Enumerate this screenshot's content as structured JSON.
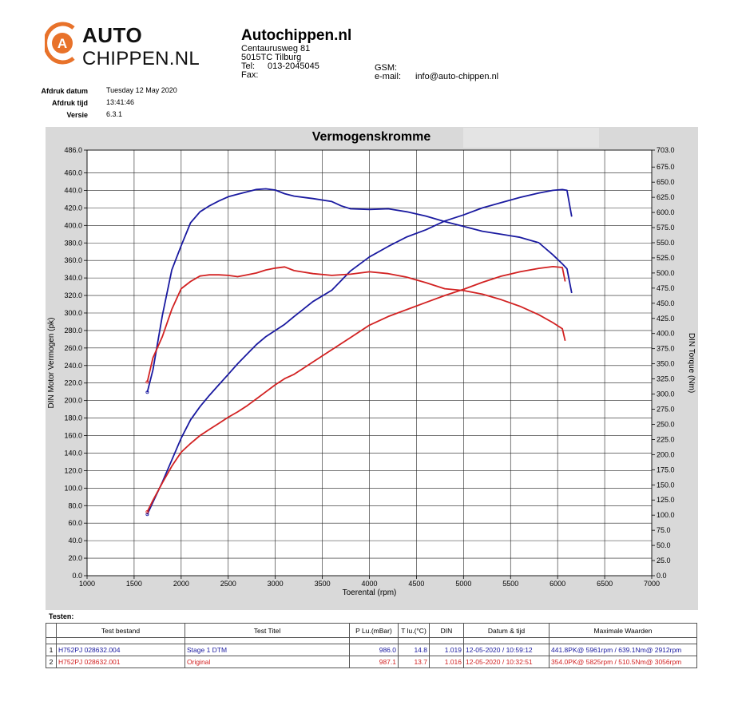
{
  "logo": {
    "line1": "AUTO",
    "line2": "CHIPPEN.NL",
    "mark_letter": "A"
  },
  "company": {
    "name": "Autochippen.nl",
    "street": "Centaurusweg 81",
    "city": "5015TC Tilburg",
    "tel_label": "Tel:",
    "tel_value": "013-2045045",
    "fax_label": "Fax:",
    "gsm_label": "GSM:",
    "email_label": "e-mail:",
    "email_value": "info@auto-chippen.nl"
  },
  "print_info": {
    "date_label": "Afdruk datum",
    "date_value": "Tuesday 12 May 2020",
    "time_label": "Afdruk tijd",
    "time_value": "13:41:46",
    "version_label": "Versie",
    "version_value": "6.3.1"
  },
  "chart_data": {
    "type": "line",
    "title": "Vermogenskromme",
    "xlabel": "Toerental (rpm)",
    "ylabel": "DIN Motor Vermogen (pk)",
    "y2label": "DIN Torque (Nm)",
    "xlim": [
      1000,
      7000
    ],
    "ylim": [
      0,
      486
    ],
    "y2lim": [
      0,
      703
    ],
    "x_ticks": [
      1000,
      1500,
      2000,
      2500,
      3000,
      3500,
      4000,
      4500,
      5000,
      5500,
      6000,
      6500,
      7000
    ],
    "y_ticks": [
      0,
      20,
      40,
      60,
      80,
      100,
      120,
      140,
      160,
      180,
      200,
      220,
      240,
      260,
      280,
      300,
      320,
      340,
      360,
      380,
      400,
      420,
      440,
      460,
      486
    ],
    "y_tick_labels": [
      "0.0",
      "20.0",
      "40.0",
      "60.0",
      "80.0",
      "100.0",
      "120.0",
      "140.0",
      "160.0",
      "180.0",
      "200.0",
      "220.0",
      "240.0",
      "260.0",
      "280.0",
      "300.0",
      "320.0",
      "340.0",
      "360.0",
      "380.0",
      "400.0",
      "420.0",
      "440.0",
      "460.0",
      "486.0"
    ],
    "y2_ticks": [
      0,
      25,
      50,
      75,
      100,
      125,
      150,
      175,
      200,
      225,
      250,
      275,
      300,
      325,
      350,
      375,
      400,
      425,
      450,
      475,
      500,
      525,
      550,
      575,
      600,
      625,
      650,
      675,
      703
    ],
    "y2_tick_labels": [
      "0.0",
      "25.0",
      "50.0",
      "75.0",
      "100.0",
      "125.0",
      "150.0",
      "175.0",
      "200.0",
      "225.0",
      "250.0",
      "275.0",
      "300.0",
      "325.0",
      "350.0",
      "375.0",
      "400.0",
      "425.0",
      "450.0",
      "475.0",
      "500.0",
      "525.0",
      "550.0",
      "575.0",
      "600.0",
      "625.0",
      "650.0",
      "675.0",
      "703.0"
    ],
    "grid": true,
    "series": [
      {
        "name": "Stage 1 DTM",
        "kind": "power",
        "axis": "left",
        "color": "#1a1aa0",
        "x": [
          1640,
          1700,
          1800,
          1900,
          2000,
          2100,
          2200,
          2300,
          2400,
          2500,
          2600,
          2700,
          2800,
          2900,
          3000,
          3100,
          3200,
          3400,
          3600,
          3700,
          3800,
          4000,
          4200,
          4400,
          4600,
          4800,
          5000,
          5200,
          5400,
          5600,
          5800,
          5950,
          6050,
          6100,
          6150
        ],
        "y": [
          70,
          84,
          107,
          132,
          157,
          178,
          193,
          206,
          218,
          230,
          242,
          253,
          264,
          273,
          280,
          287,
          296,
          313,
          326,
          337,
          348,
          364,
          376,
          387,
          395,
          405,
          412,
          420,
          426,
          432,
          437,
          440,
          441,
          440,
          410
        ]
      },
      {
        "name": "Original",
        "kind": "power",
        "axis": "left",
        "color": "#d22222",
        "x": [
          1640,
          1700,
          1800,
          1900,
          2000,
          2100,
          2200,
          2300,
          2400,
          2500,
          2600,
          2700,
          2800,
          2900,
          3000,
          3100,
          3200,
          3400,
          3600,
          3800,
          4000,
          4200,
          4400,
          4600,
          4800,
          5000,
          5200,
          5400,
          5600,
          5800,
          5950,
          6050,
          6080
        ],
        "y": [
          73,
          86,
          106,
          125,
          141,
          151,
          160,
          167,
          174,
          181,
          187,
          194,
          202,
          210,
          218,
          225,
          230,
          244,
          258,
          272,
          286,
          296,
          304,
          312,
          320,
          327,
          335,
          342,
          347,
          351,
          353,
          352,
          336
        ]
      },
      {
        "name": "Stage 1 DTM",
        "kind": "torque",
        "axis": "right",
        "color": "#1a1aa0",
        "x": [
          1640,
          1700,
          1800,
          1900,
          2000,
          2100,
          2200,
          2300,
          2400,
          2500,
          2600,
          2700,
          2800,
          2900,
          3000,
          3100,
          3200,
          3400,
          3600,
          3700,
          3800,
          4000,
          4200,
          4400,
          4600,
          4800,
          5000,
          5200,
          5400,
          5600,
          5800,
          5950,
          6050,
          6100,
          6150
        ],
        "y": [
          303,
          340,
          430,
          505,
          545,
          583,
          601,
          611,
          619,
          626,
          630,
          634,
          638,
          639,
          637,
          631,
          627,
          623,
          618,
          611,
          606,
          605,
          606,
          601,
          594,
          585,
          577,
          569,
          564,
          559,
          550,
          530,
          515,
          507,
          467
        ]
      },
      {
        "name": "Original",
        "kind": "torque",
        "axis": "right",
        "color": "#d22222",
        "x": [
          1640,
          1700,
          1800,
          1900,
          2000,
          2100,
          2200,
          2300,
          2400,
          2500,
          2600,
          2700,
          2800,
          2900,
          3000,
          3100,
          3200,
          3400,
          3600,
          3800,
          4000,
          4200,
          4400,
          4600,
          4800,
          5000,
          5200,
          5400,
          5600,
          5800,
          5950,
          6050,
          6080
        ],
        "y": [
          320,
          360,
          395,
          440,
          474,
          486,
          495,
          497,
          497,
          496,
          494,
          497,
          500,
          505,
          508,
          510,
          504,
          499,
          496,
          498,
          502,
          499,
          493,
          484,
          474,
          471,
          465,
          456,
          445,
          431,
          418,
          408,
          388
        ]
      }
    ]
  },
  "tests": {
    "title": "Testen:",
    "headers": [
      "Test bestand",
      "Test Titel",
      "P Lu.(mBar)",
      "T lu.(°C)",
      "DIN",
      "Datum & tijd",
      "Maximale Waarden"
    ],
    "rows": [
      {
        "index": "1",
        "file": "H752PJ 028632.004",
        "title": "Stage 1 DTM",
        "pressure": "986.0",
        "temp": "14.8",
        "din": "1.019",
        "datetime": "12-05-2020 / 10:59:12",
        "max": "441.8PK@ 5961rpm / 639.1Nm@ 2912rpm",
        "color": "#1a1aa0"
      },
      {
        "index": "2",
        "file": "H752PJ 028632.001",
        "title": "Original",
        "pressure": "987.1",
        "temp": "13.7",
        "din": "1.016",
        "datetime": "12-05-2020 / 10:32:51",
        "max": "354.0PK@ 5825rpm / 510.5Nm@ 3056rpm",
        "color": "#d22222"
      }
    ]
  }
}
